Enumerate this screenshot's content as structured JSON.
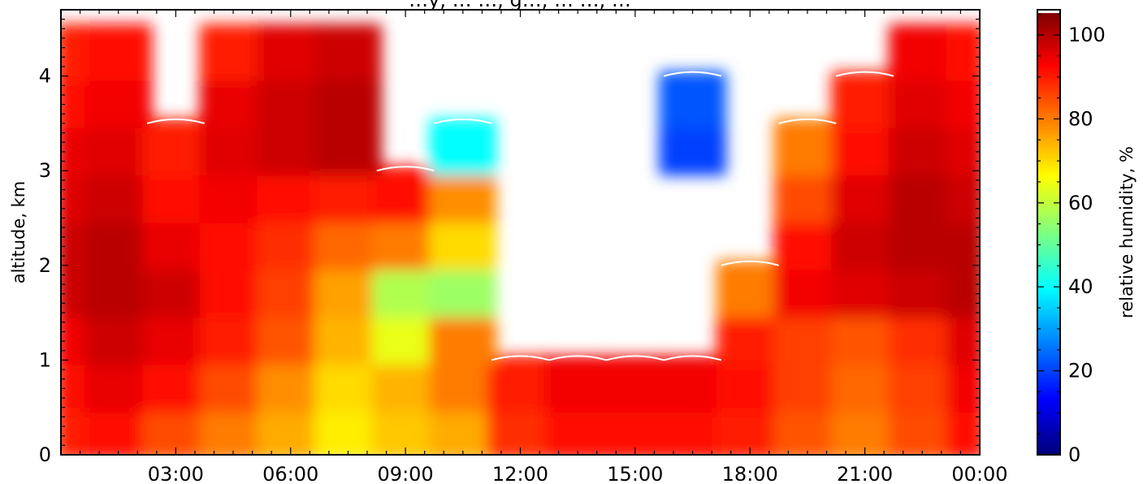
{
  "chart_data": {
    "type": "heatmap",
    "title": "…y, … …, g…, … …, …",
    "xlabel": "",
    "ylabel": "altitude, km",
    "colorbar_label": "relative humidity, %",
    "x_tick_labels": [
      "03:00",
      "06:00",
      "09:00",
      "12:00",
      "15:00",
      "18:00",
      "21:00",
      "00:00"
    ],
    "x_tick_hours": [
      3,
      6,
      9,
      12,
      15,
      18,
      21,
      24
    ],
    "xlim_hours": [
      0,
      24
    ],
    "y_tick_labels": [
      "0",
      "1",
      "2",
      "3",
      "4"
    ],
    "y_ticks": [
      0,
      1,
      2,
      3,
      4
    ],
    "ylim_km": [
      0,
      4.7
    ],
    "colorbar_tick_labels": [
      "0",
      "20",
      "40",
      "60",
      "80",
      "100"
    ],
    "colorbar_ticks": [
      0,
      20,
      40,
      60,
      80,
      100
    ],
    "colorbar_range": [
      0,
      106
    ],
    "colormap": "jet",
    "missing_data_color": "#ffffff",
    "contour_color": "#ffffff",
    "humidity_profile": {
      "altitudes_km": [
        0.25,
        0.75,
        1.25,
        1.75,
        2.25,
        2.75,
        3.25,
        3.75,
        4.25
      ],
      "hours": [
        0,
        1.5,
        3,
        4.5,
        6,
        7.5,
        9,
        10.5,
        12,
        13.5,
        15,
        16.5,
        18,
        19.5,
        21,
        22.5,
        24
      ],
      "values_percent": [
        [
          90,
          92,
          85,
          80,
          75,
          68,
          72,
          75,
          88,
          92,
          92,
          92,
          90,
          84,
          80,
          85,
          92
        ],
        [
          92,
          95,
          92,
          85,
          78,
          70,
          74,
          80,
          90,
          94,
          94,
          94,
          92,
          86,
          82,
          86,
          94
        ],
        [
          94,
          98,
          95,
          90,
          84,
          74,
          64,
          80,
          null,
          null,
          null,
          null,
          90,
          86,
          84,
          88,
          96
        ],
        [
          98,
          100,
          98,
          92,
          86,
          76,
          58,
          56,
          null,
          null,
          null,
          null,
          80,
          94,
          96,
          98,
          100
        ],
        [
          98,
          100,
          95,
          92,
          88,
          82,
          80,
          70,
          null,
          null,
          null,
          null,
          null,
          92,
          98,
          100,
          100
        ],
        [
          96,
          98,
          92,
          94,
          92,
          90,
          92,
          78,
          null,
          null,
          null,
          null,
          null,
          85,
          96,
          100,
          98
        ],
        [
          95,
          96,
          90,
          96,
          98,
          100,
          null,
          40,
          null,
          null,
          null,
          20,
          null,
          80,
          92,
          98,
          96
        ],
        [
          92,
          94,
          null,
          95,
          98,
          100,
          null,
          null,
          null,
          null,
          null,
          22,
          null,
          null,
          90,
          96,
          94
        ],
        [
          90,
          92,
          null,
          90,
          96,
          98,
          null,
          null,
          null,
          null,
          null,
          null,
          null,
          null,
          null,
          94,
          92
        ]
      ]
    }
  }
}
